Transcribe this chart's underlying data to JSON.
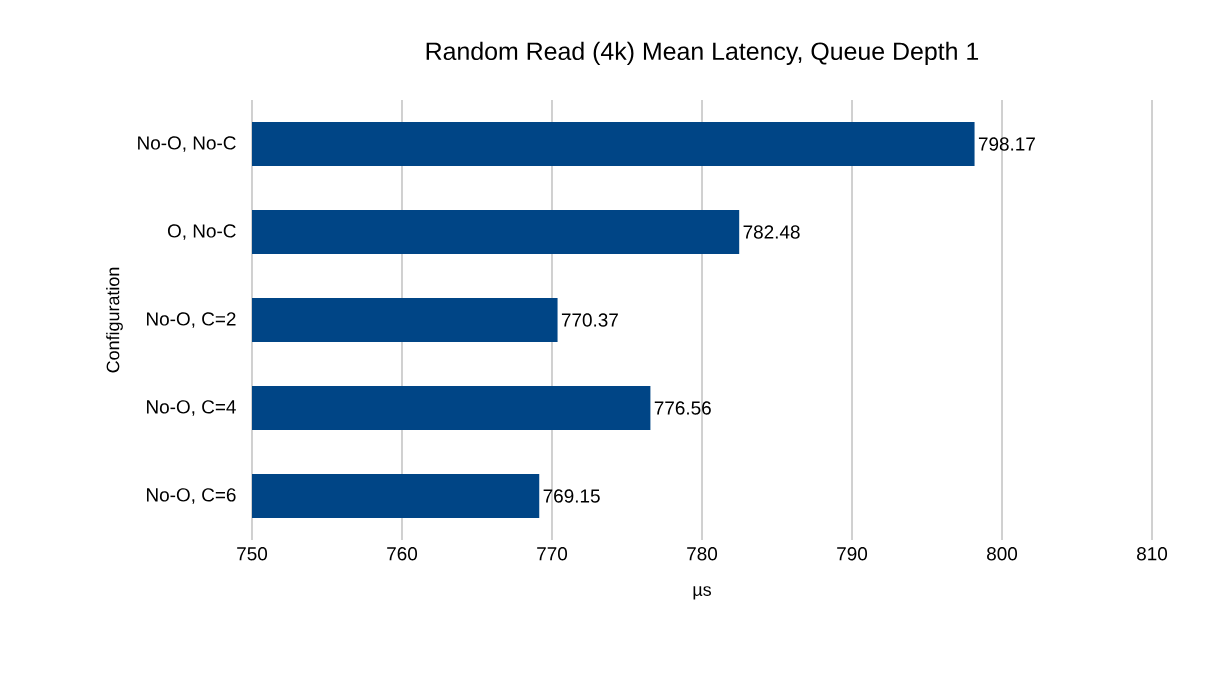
{
  "chart_data": {
    "type": "bar",
    "orientation": "horizontal",
    "title": "Random Read (4k) Mean Latency, Queue Depth 1",
    "xlabel": "µs",
    "ylabel": "Configuration",
    "categories": [
      "No-O, No-C",
      "O, No-C",
      "No-O, C=2",
      "No-O, C=4",
      "No-O, C=6"
    ],
    "values": [
      798.17,
      782.48,
      770.37,
      776.56,
      769.15
    ],
    "color": "#004586",
    "xlim": [
      750,
      810
    ],
    "xticks": [
      750,
      760,
      770,
      780,
      790,
      800,
      810
    ],
    "grid": "x",
    "data_labels": true
  }
}
